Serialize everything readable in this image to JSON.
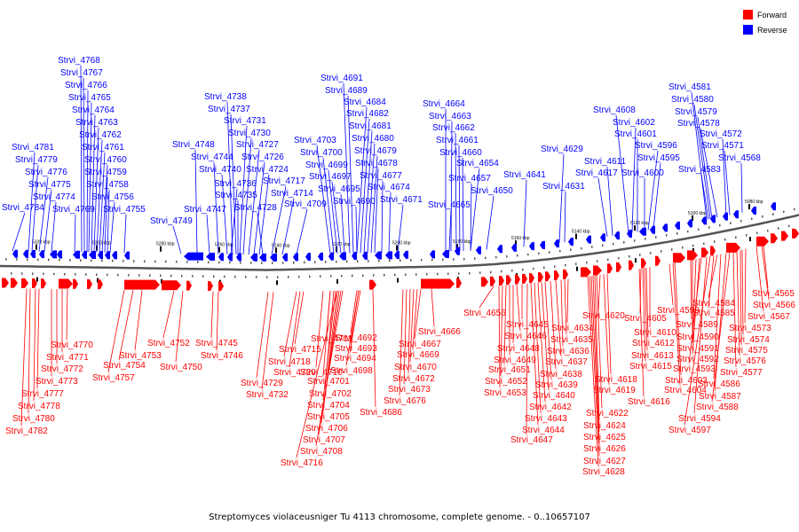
{
  "caption": "Streptomyces violaceusniger Tu 4113 chromosome, complete genome. - 0..10657107",
  "legend": [
    {
      "label": "Forward",
      "color": "#ff0000"
    },
    {
      "label": "Reverse",
      "color": "#0000ff"
    }
  ],
  "colors": {
    "forward": "#ff0000",
    "reverse": "#0000ff",
    "backbone": "#555555",
    "ticks": "#000000"
  },
  "scale_ticks": [
    "5320 kbp",
    "5300 kbp",
    "5280 kbp",
    "5260 kbp",
    "5240 kbp",
    "5220 kbp",
    "5200 kbp",
    "5180 kbp",
    "5160 kbp",
    "5140 kbp",
    "5120 kbp",
    "5100 kbp",
    "5080 kbp"
  ],
  "reverse_labels": [
    "Strvi_4768",
    "Strvi_4767",
    "Strvi_4766",
    "Strvi_4765",
    "Strvi_4764",
    "Strvi_4763",
    "Strvi_4762",
    "Strvi_4761",
    "Strvi_4760",
    "Strvi_4759",
    "Strvi_4758",
    "Strvi_4756",
    "Strvi_4755",
    "Strvi_4781",
    "Strvi_4779",
    "Strvi_4776",
    "Strvi_4775",
    "Strvi_4774",
    "Strvi_4784",
    "Strvi_4769",
    "Strvi_4738",
    "Strvi_4737",
    "Strvi_4731",
    "Strvi_4730",
    "Strvi_4727",
    "Strvi_4726",
    "Strvi_4724",
    "Strvi_4717",
    "Strvi_4714",
    "Strvi_4709",
    "Strvi_4748",
    "Strvi_4744",
    "Strvi_4740",
    "Strvi_4736",
    "Strvi_4735",
    "Strvi_4728",
    "Strvi_4747",
    "Strvi_4749",
    "Strvi_4691",
    "Strvi_4689",
    "Strvi_4684",
    "Strvi_4682",
    "Strvi_4681",
    "Strvi_4680",
    "Strvi_4679",
    "Strvi_4678",
    "Strvi_4677",
    "Strvi_4674",
    "Strvi_4671",
    "Strvi_4703",
    "Strvi_4700",
    "Strvi_4699",
    "Strvi_4697",
    "Strvi_4695",
    "Strvi_4690",
    "Strvi_4664",
    "Strvi_4663",
    "Strvi_4662",
    "Strvi_4661",
    "Strvi_4660",
    "Strvi_4654",
    "Strvi_4657",
    "Strvi_4650",
    "Strvi_4665",
    "Strvi_4641",
    "Strvi_4629",
    "Strvi_4631",
    "Strvi_4608",
    "Strvi_4602",
    "Strvi_4601",
    "Strvi_4596",
    "Strvi_4595",
    "Strvi_4611",
    "Strvi_4617",
    "Strvi_4600",
    "Strvi_4581",
    "Strvi_4580",
    "Strvi_4579",
    "Strvi_4578",
    "Strvi_4572",
    "Strvi_4571",
    "Strvi_4583",
    "Strvi_4568"
  ],
  "forward_labels": [
    "Strvi_4770",
    "Strvi_4771",
    "Strvi_4772",
    "Strvi_4773",
    "Strvi_4777",
    "Strvi_4778",
    "Strvi_4780",
    "Strvi_4782",
    "Strvi_4752",
    "Strvi_4753",
    "Strvi_4754",
    "Strvi_4757",
    "Strvi_4750",
    "Strvi_4745",
    "Strvi_4746",
    "Strvi_4729",
    "Strvi_4732",
    "Strvi_4711",
    "Strvi_4715",
    "Strvi_4718",
    "Strvi_4720",
    "Strvi_4710",
    "Strvi_4701",
    "Strvi_4702",
    "Strvi_4704",
    "Strvi_4705",
    "Strvi_4706",
    "Strvi_4707",
    "Strvi_4708",
    "Strvi_4716",
    "Strvi_4692",
    "Strvi_4693",
    "Strvi_4694",
    "Strvi_4698",
    "Strvi_4686",
    "Strvi_4666",
    "Strvi_4667",
    "Strvi_4669",
    "Strvi_4670",
    "Strvi_4672",
    "Strvi_4673",
    "Strvi_4676",
    "Strvi_4656",
    "Strvi_4645",
    "Strvi_4646",
    "Strvi_4648",
    "Strvi_4649",
    "Strvi_4651",
    "Strvi_4652",
    "Strvi_4653",
    "Strvi_4634",
    "Strvi_4635",
    "Strvi_4636",
    "Strvi_4637",
    "Strvi_4638",
    "Strvi_4639",
    "Strvi_4640",
    "Strvi_4642",
    "Strvi_4643",
    "Strvi_4644",
    "Strvi_4647",
    "Strvi_4620",
    "Strvi_4618",
    "Strvi_4619",
    "Strvi_4622",
    "Strvi_4624",
    "Strvi_4625",
    "Strvi_4626",
    "Strvi_4627",
    "Strvi_4628",
    "Strvi_4610",
    "Strvi_4612",
    "Strvi_4613",
    "Strvi_4615",
    "Strvi_4616",
    "Strvi_4605",
    "Strvi_4603",
    "Strvi_4604",
    "Strvi_4599",
    "Strvi_4589",
    "Strvi_4590",
    "Strvi_4591",
    "Strvi_4592",
    "Strvi_4593",
    "Strvi_4594",
    "Strvi_4597",
    "Strvi_4584",
    "Strvi_4585",
    "Strvi_4586",
    "Strvi_4587",
    "Strvi_4588",
    "Strvi_4565",
    "Strvi_4566",
    "Strvi_4567",
    "Strvi_4573",
    "Strvi_4574",
    "Strvi_4575",
    "Strvi_4576",
    "Strvi_4577"
  ]
}
